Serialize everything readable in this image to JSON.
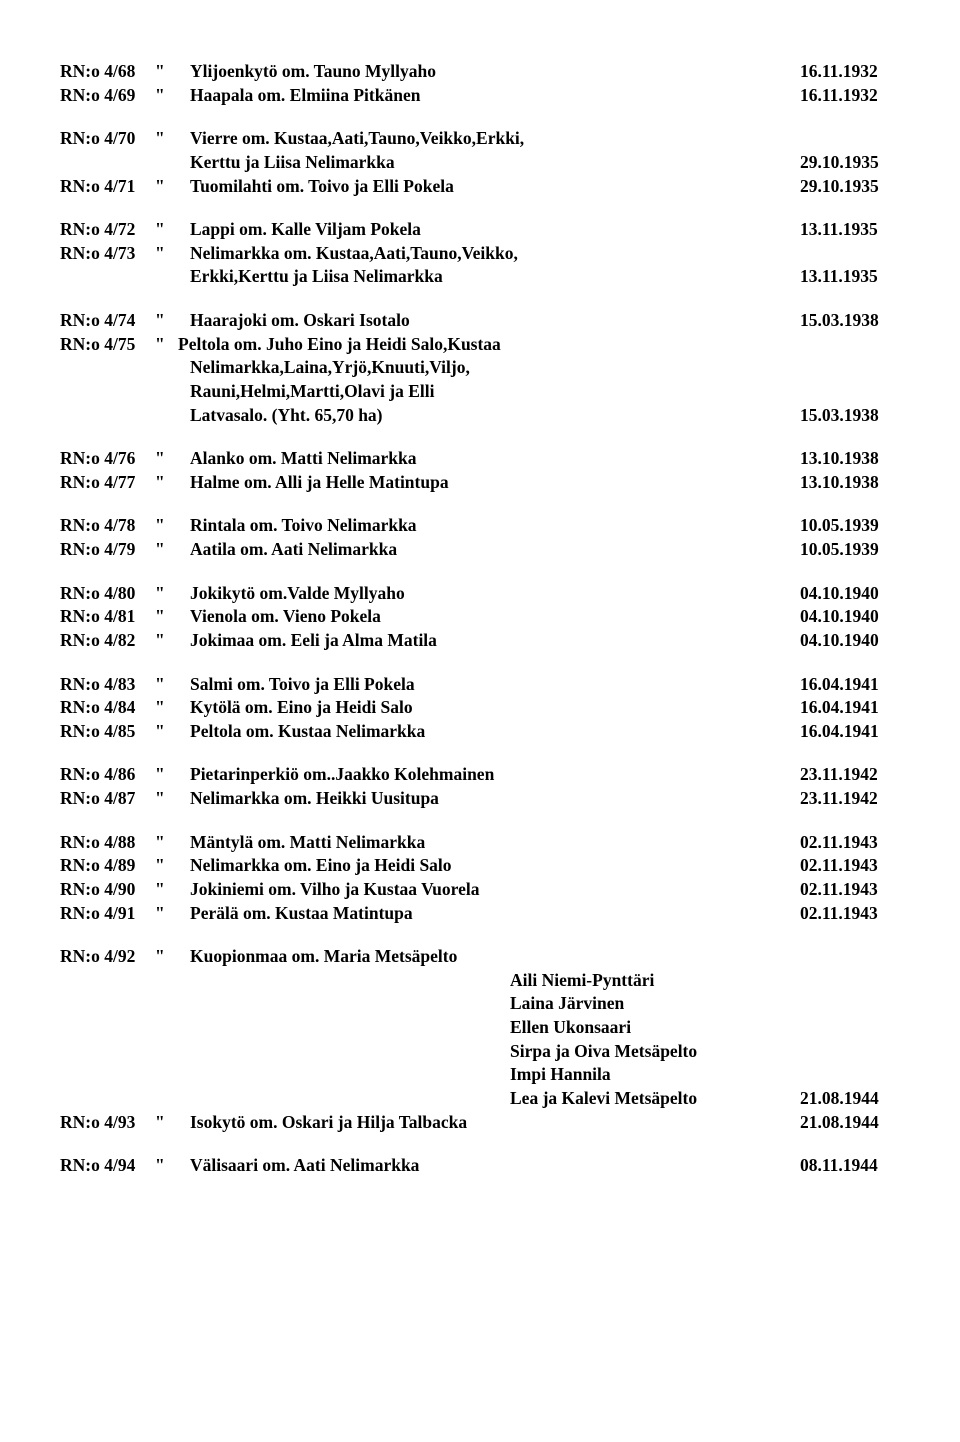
{
  "doc": {
    "font_family": "Times New Roman",
    "font_size_pt": 13,
    "font_weight": "bold",
    "text_color": "#000000",
    "background_color": "#ffffff"
  },
  "entries": [
    {
      "rn": "RN:o 4/68",
      "q": "\"",
      "desc": "Ylijoenkytö om. Tauno Myllyaho",
      "date": "16.11.1932"
    },
    {
      "rn": "RN:o 4/69",
      "q": "\"",
      "desc": "Haapala om. Elmiina Pitkänen",
      "date": "16.11.1932"
    },
    {
      "gap": true
    },
    {
      "rn": "RN:o 4/70",
      "q": "\"",
      "desc": "Vierre om. Kustaa,Aati,Tauno,Veikko,Erkki,",
      "date": ""
    },
    {
      "cont": true,
      "desc": "Kerttu ja Liisa Nelimarkka",
      "date": "29.10.1935"
    },
    {
      "rn": "RN:o 4/71",
      "q": "\"",
      "desc": "Tuomilahti om. Toivo ja Elli Pokela",
      "date": "29.10.1935"
    },
    {
      "gap": true
    },
    {
      "rn": "RN:o 4/72",
      "q": "\"",
      "desc": "Lappi om. Kalle Viljam Pokela",
      "date": "13.11.1935"
    },
    {
      "rn": "RN:o 4/73",
      "q": "\"",
      "desc": "Nelimarkka om. Kustaa,Aati,Tauno,Veikko,",
      "date": ""
    },
    {
      "cont": true,
      "desc": "Erkki,Kerttu ja Liisa Nelimarkka",
      "date": "13.11.1935"
    },
    {
      "gap": true
    },
    {
      "rn": "RN:o 4/74",
      "q": "\"",
      "desc": "Haarajoki om. Oskari Isotalo",
      "date": "15.03.1938"
    },
    {
      "rn": "RN:o 4/75",
      "q": "\"",
      "desc": "Peltola om. Juho Eino ja Heidi Salo,Kustaa",
      "date": "",
      "tight_q": true
    },
    {
      "cont": true,
      "desc": "Nelimarkka,Laina,Yrjö,Knuuti,Viljo,",
      "date": ""
    },
    {
      "cont": true,
      "desc": "Rauni,Helmi,Martti,Olavi ja Elli",
      "date": ""
    },
    {
      "cont": true,
      "desc": "Latvasalo. (Yht. 65,70 ha)",
      "date": "15.03.1938"
    },
    {
      "gap": true
    },
    {
      "rn": "RN:o 4/76",
      "q": "\"",
      "desc": "Alanko om. Matti Nelimarkka",
      "date": "13.10.1938"
    },
    {
      "rn": "RN:o 4/77",
      "q": "\"",
      "desc": "Halme om. Alli ja Helle Matintupa",
      "date": "13.10.1938"
    },
    {
      "gap": true
    },
    {
      "rn": "RN:o 4/78",
      "q": "\"",
      "desc": "Rintala om. Toivo Nelimarkka",
      "date": "10.05.1939"
    },
    {
      "rn": "RN:o 4/79",
      "q": "\"",
      "desc": "Aatila om. Aati Nelimarkka",
      "date": "10.05.1939"
    },
    {
      "gap": true
    },
    {
      "rn": "RN:o 4/80",
      "q": "\"",
      "desc": "Jokikytö om.Valde Myllyaho",
      "date": "04.10.1940"
    },
    {
      "rn": "RN:o 4/81",
      "q": "\"",
      "desc": "Vienola om. Vieno Pokela",
      "date": "04.10.1940"
    },
    {
      "rn": "RN:o 4/82",
      "q": "\"",
      "desc": "Jokimaa om. Eeli ja Alma Matila",
      "date": "04.10.1940"
    },
    {
      "gap": true
    },
    {
      "rn": "RN:o 4/83",
      "q": "\"",
      "desc": "Salmi om. Toivo ja Elli Pokela",
      "date": "16.04.1941"
    },
    {
      "rn": "RN:o 4/84",
      "q": "\"",
      "desc": "Kytölä om. Eino ja Heidi Salo",
      "date": "16.04.1941"
    },
    {
      "rn": "RN:o 4/85",
      "q": "\"",
      "desc": "Peltola om. Kustaa Nelimarkka",
      "date": "16.04.1941"
    },
    {
      "gap": true
    },
    {
      "rn": "RN:o 4/86",
      "q": "\"",
      "desc": "Pietarinperkiö om..Jaakko Kolehmainen",
      "date": "23.11.1942"
    },
    {
      "rn": "RN:o 4/87",
      "q": "\"",
      "desc": "Nelimarkka om. Heikki Uusitupa",
      "date": "23.11.1942"
    },
    {
      "gap": true
    },
    {
      "rn": "RN:o 4/88",
      "q": "\"",
      "desc": "Mäntylä om. Matti Nelimarkka",
      "date": "02.11.1943"
    },
    {
      "rn": "RN:o 4/89",
      "q": "\"",
      "desc": "Nelimarkka om. Eino ja Heidi Salo",
      "date": "02.11.1943"
    },
    {
      "rn": "RN:o 4/90",
      "q": "\"",
      "desc": "Jokiniemi om. Vilho ja Kustaa Vuorela",
      "date": "02.11.1943"
    },
    {
      "rn": "RN:o 4/91",
      "q": "\"",
      "desc": "Perälä om. Kustaa Matintupa",
      "date": "02.11.1943"
    },
    {
      "gap": true
    },
    {
      "rn": "RN:o 4/92",
      "q": "\"",
      "desc": "Kuopionmaa om. Maria Metsäpelto",
      "date": ""
    },
    {
      "deep": true,
      "desc": "Aili Niemi-Pynttäri",
      "date": ""
    },
    {
      "deep": true,
      "desc": "Laina Järvinen",
      "date": ""
    },
    {
      "deep": true,
      "desc": "Ellen Ukonsaari",
      "date": ""
    },
    {
      "deep": true,
      "desc": "Sirpa ja Oiva Metsäpelto",
      "date": ""
    },
    {
      "deep": true,
      "desc": "Impi Hannila",
      "date": ""
    },
    {
      "deep": true,
      "desc": "Lea ja Kalevi Metsäpelto",
      "date": "21.08.1944"
    },
    {
      "rn": "RN:o 4/93",
      "q": "\"",
      "desc": "Isokytö om. Oskari ja Hilja Talbacka",
      "date": "21.08.1944"
    },
    {
      "gap": true
    },
    {
      "rn": "RN:o 4/94",
      "q": "\"",
      "desc": "Välisaari om. Aati Nelimarkka",
      "date": "08.11.1944"
    }
  ]
}
